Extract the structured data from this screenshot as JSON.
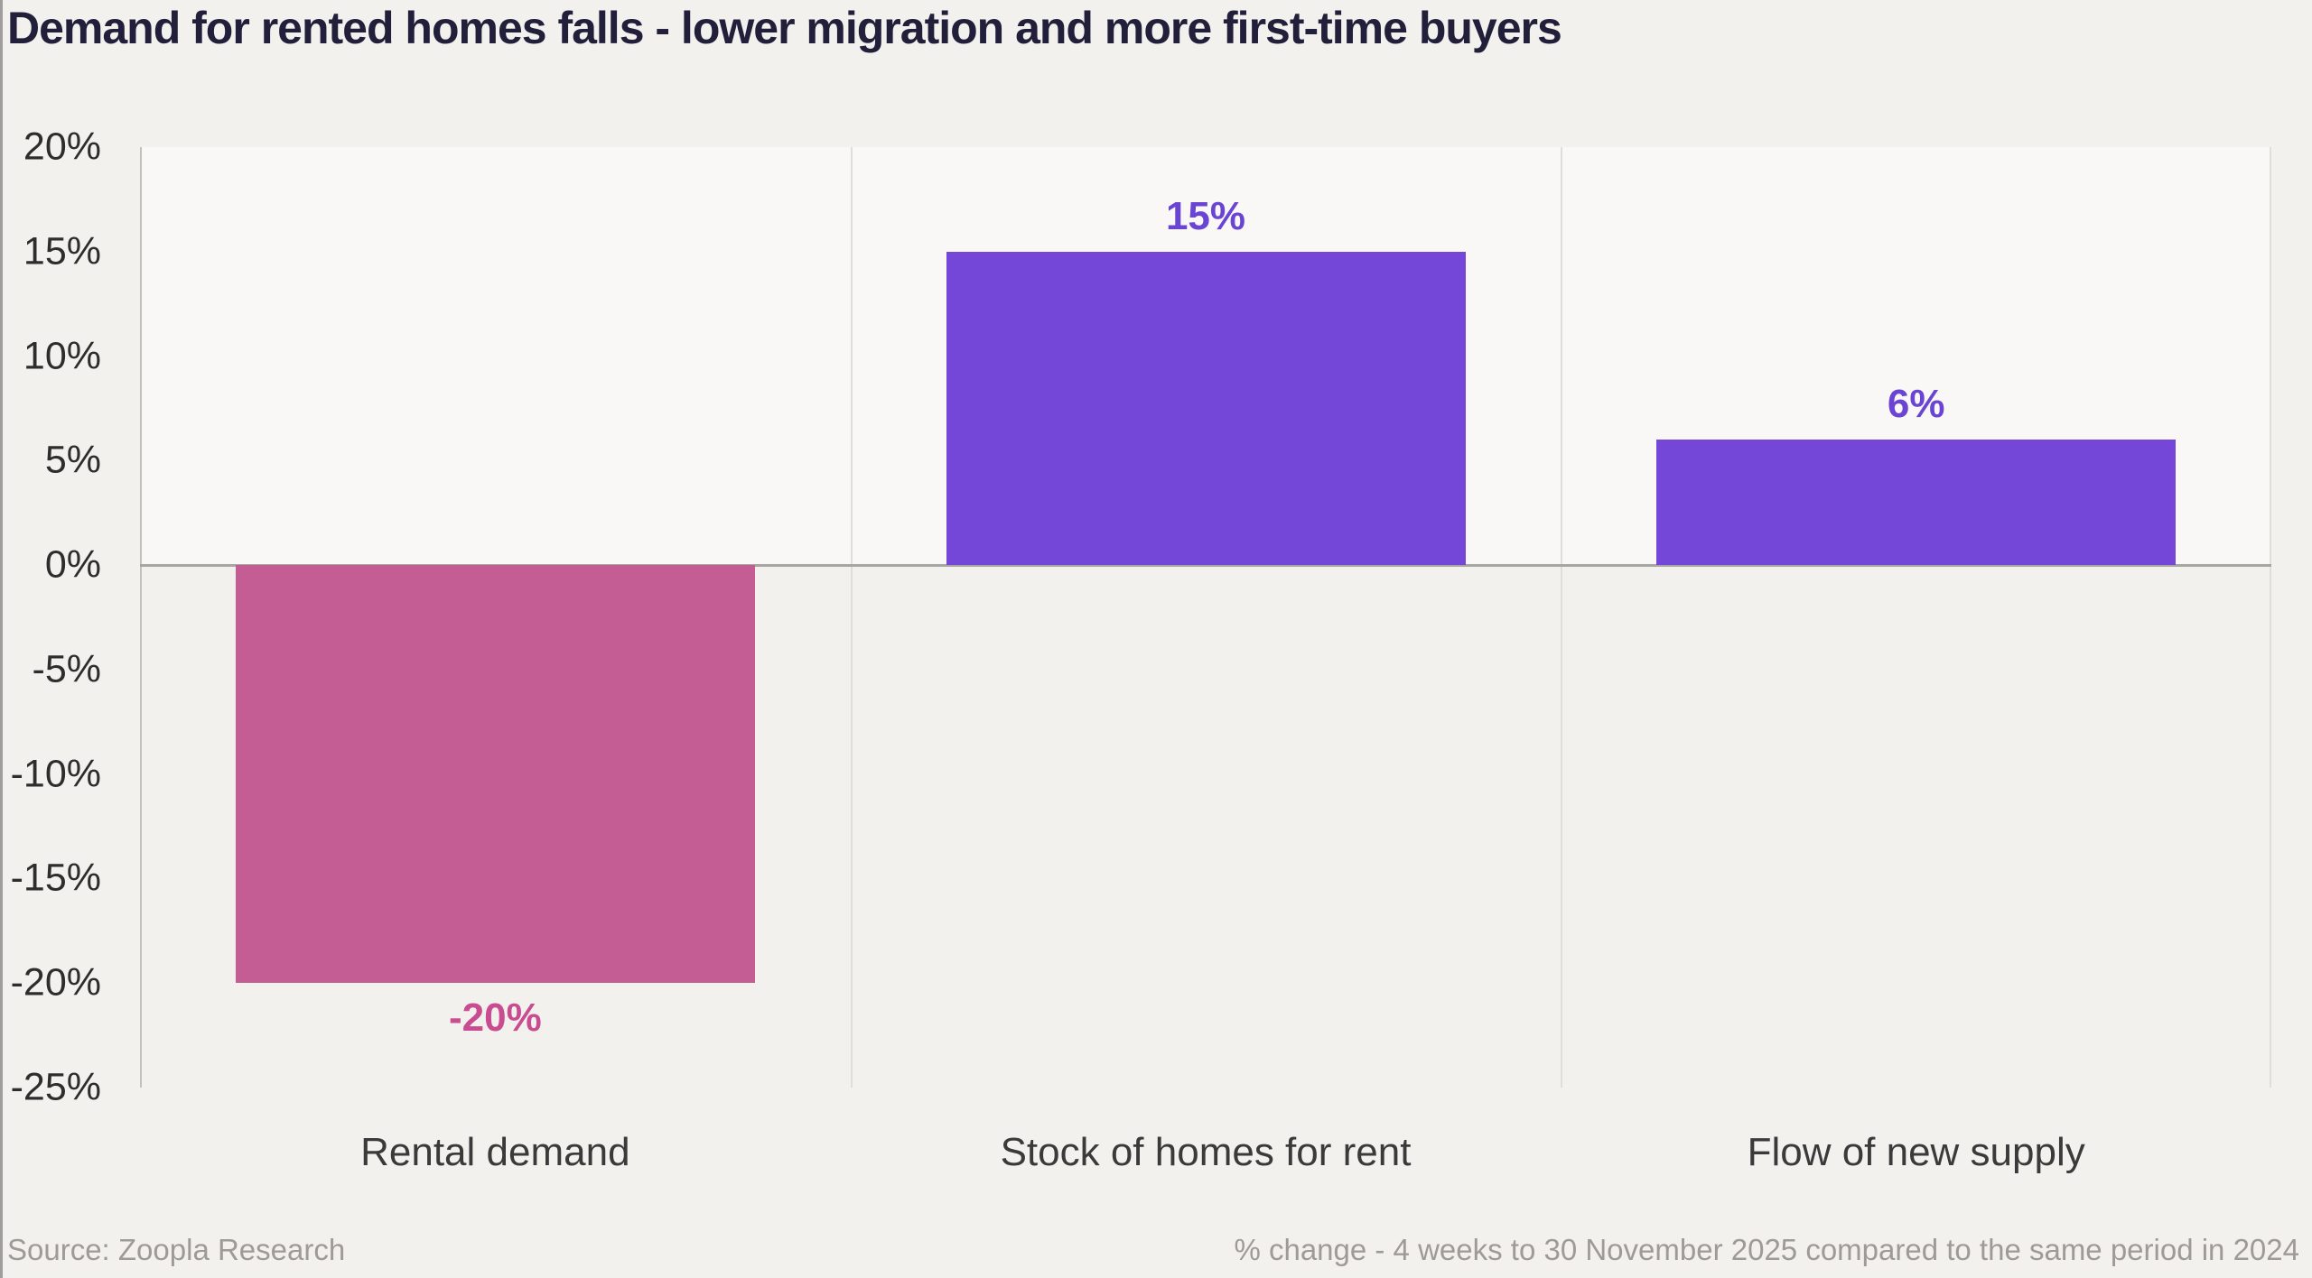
{
  "title": "Demand for rented homes falls - lower migration and more first-time buyers",
  "footer": {
    "source": "Source: Zoopla Research",
    "note": "% change - 4 weeks to 30 November 2025 compared to the same period in 2024"
  },
  "colors": {
    "page_bg": "#f3f1ee",
    "plot_upper_bg": "#f9f8f6",
    "title_text": "#221f3a",
    "axis_text": "#2e2d2d",
    "category_text": "#3b3a3a",
    "footer_text": "#9d9a97",
    "zero_line": "#a8a6a3",
    "grid_line": "#e0dedb",
    "axis_line": "#c3c1be",
    "negative_bar": "#c45d93",
    "positive_bar": "#7547d8",
    "negative_value_label": "#c94b90",
    "positive_value_label": "#6a45d3"
  },
  "chart_data": {
    "type": "bar",
    "title": "Demand for rented homes falls - lower migration and more first-time buyers",
    "xlabel": "",
    "ylabel": "",
    "categories": [
      "Rental demand",
      "Stock of homes for rent",
      "Flow of new supply"
    ],
    "values": [
      -20,
      15,
      6
    ],
    "value_labels": [
      "-20%",
      "15%",
      "6%"
    ],
    "bar_colors": [
      "#c45d93",
      "#7547d8",
      "#7547d8"
    ],
    "value_label_colors": [
      "#c94b90",
      "#6a45d3",
      "#6a45d3"
    ],
    "ylim": [
      -25,
      20
    ],
    "ytick_values": [
      20,
      15,
      10,
      5,
      0,
      -5,
      -10,
      -15,
      -20,
      -25
    ],
    "ytick_labels": [
      "20%",
      "15%",
      "10%",
      "5%",
      "0%",
      "-5%",
      "-10%",
      "-15%",
      "-20%",
      "-25%"
    ],
    "grid": "vertical category separators, zero baseline, no horizontal gridlines",
    "legend": "none",
    "note": "% change - 4 weeks to 30 November 2025 compared to the same period in 2024",
    "source": "Source: Zoopla Research"
  }
}
